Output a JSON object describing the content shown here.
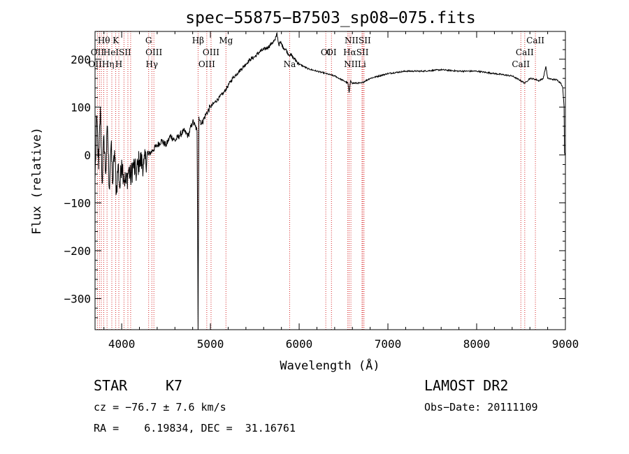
{
  "chart_data": {
    "type": "line",
    "title": "spec−55875−B7503_sp08−075.fits",
    "xlabel": "Wavelength (Å)",
    "ylabel": "Flux (relative)",
    "xlim": [
      3700,
      9000
    ],
    "ylim": [
      -365,
      258
    ],
    "xticks": [
      4000,
      5000,
      6000,
      7000,
      8000,
      9000
    ],
    "xtick_labels": [
      "4000",
      "5000",
      "6000",
      "7000",
      "8000",
      "9000"
    ],
    "yticks": [
      200,
      100,
      0,
      -100,
      -200,
      -300
    ],
    "ytick_labels": [
      "200",
      "100",
      "0",
      "−100",
      "−200",
      "−300"
    ],
    "grid": false,
    "series": [
      {
        "color": "#000000",
        "x": [
          3700,
          3720,
          3740,
          3760,
          3780,
          3800,
          3820,
          3840,
          3860,
          3880,
          3900,
          3920,
          3940,
          3960,
          3980,
          4000,
          4020,
          4050,
          4080,
          4100,
          4130,
          4160,
          4200,
          4250,
          4300,
          4350,
          4400,
          4450,
          4500,
          4550,
          4600,
          4650,
          4700,
          4750,
          4800,
          4830,
          4850,
          4861,
          4870,
          4900,
          4950,
          5000,
          5050,
          5100,
          5150,
          5200,
          5250,
          5300,
          5350,
          5400,
          5450,
          5500,
          5550,
          5600,
          5650,
          5700,
          5730,
          5750,
          5770,
          5790,
          5820,
          5850,
          5880,
          5900,
          5950,
          6000,
          6050,
          6100,
          6200,
          6300,
          6400,
          6500,
          6550,
          6563,
          6580,
          6600,
          6650,
          6700,
          6800,
          6900,
          7000,
          7200,
          7400,
          7600,
          7800,
          8000,
          8200,
          8400,
          8498,
          8542,
          8600,
          8662,
          8700,
          8750,
          8780,
          8800,
          8850,
          8900,
          8950,
          8970,
          8985,
          8990,
          9000
        ],
        "y": [
          -50,
          80,
          -30,
          100,
          -60,
          40,
          -40,
          60,
          -70,
          20,
          -60,
          10,
          -80,
          -20,
          -70,
          -10,
          -40,
          -60,
          -30,
          -50,
          -20,
          -40,
          -10,
          -20,
          0,
          10,
          20,
          30,
          20,
          40,
          30,
          40,
          50,
          40,
          70,
          60,
          50,
          -365,
          80,
          65,
          85,
          100,
          110,
          120,
          130,
          145,
          160,
          170,
          180,
          190,
          200,
          205,
          215,
          220,
          225,
          235,
          240,
          255,
          230,
          235,
          225,
          220,
          210,
          210,
          200,
          190,
          185,
          180,
          175,
          170,
          165,
          155,
          150,
          130,
          155,
          150,
          150,
          150,
          160,
          165,
          170,
          175,
          175,
          178,
          175,
          175,
          170,
          165,
          155,
          150,
          160,
          158,
          155,
          160,
          185,
          160,
          158,
          157,
          150,
          140,
          100,
          5,
          0
        ]
      }
    ],
    "lines": {
      "color": "#d62728",
      "wavelengths": [
        3727,
        3750,
        3771,
        3798,
        3835,
        3889,
        3933,
        3968,
        4026,
        4070,
        4101,
        4304,
        4340,
        4363,
        4861,
        4959,
        5007,
        5175,
        5893,
        6300,
        6364,
        6548,
        6563,
        6583,
        6708,
        6717,
        6731,
        8498,
        8542,
        8662
      ],
      "labels": [
        {
          "text": "Hθ",
          "x": 3800,
          "row": 1
        },
        {
          "text": "K",
          "x": 3933,
          "row": 1
        },
        {
          "text": "G",
          "x": 4304,
          "row": 1
        },
        {
          "text": "Hβ",
          "x": 4861,
          "row": 1
        },
        {
          "text": "Mg",
          "x": 5175,
          "row": 1
        },
        {
          "text": "OI",
          "x": 6364,
          "row": 2
        },
        {
          "text": "NIISII",
          "x": 6660,
          "row": 1
        },
        {
          "text": "CaII",
          "x": 8662,
          "row": 1
        },
        {
          "text": "OII",
          "x": 3727,
          "row": 2
        },
        {
          "text": "HeISII",
          "x": 3950,
          "row": 2
        },
        {
          "text": "OIII",
          "x": 4363,
          "row": 2
        },
        {
          "text": "OIII",
          "x": 5007,
          "row": 2
        },
        {
          "text": "OI",
          "x": 6300,
          "row": 3
        },
        {
          "text": "HαSII",
          "x": 6640,
          "row": 3
        },
        {
          "text": "CaII",
          "x": 8542,
          "row": 3
        },
        {
          "text": "OIIHη",
          "x": 3771,
          "row": 4
        },
        {
          "text": "H",
          "x": 3968,
          "row": 4
        },
        {
          "text": "Hγ",
          "x": 4340,
          "row": 4
        },
        {
          "text": "OIII",
          "x": 4959,
          "row": 4
        },
        {
          "text": "Na",
          "x": 5893,
          "row": 4
        },
        {
          "text": "NII",
          "x": 6583,
          "row": 4
        },
        {
          "text": "Li",
          "x": 6708,
          "row": 4
        },
        {
          "text": "CaII",
          "x": 8498,
          "row": 4
        }
      ]
    }
  },
  "footer": {
    "object_class": "STAR",
    "subclass": "K7",
    "survey": "LAMOST DR2",
    "redshift": "cz = −76.7 ± 7.6 km/s",
    "obs_date": "Obs−Date: 20111109",
    "coords": "RA =    6.19834, DEC =  31.16761"
  }
}
